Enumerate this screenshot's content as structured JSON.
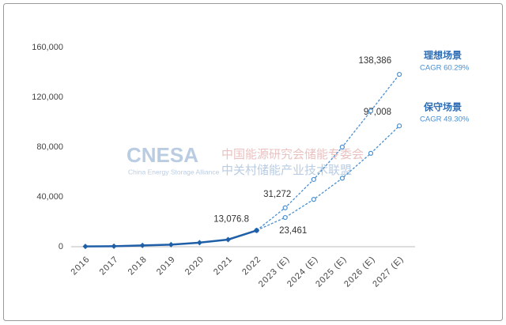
{
  "chart_data": {
    "type": "line",
    "categories": [
      "2016",
      "2017",
      "2018",
      "2019",
      "2020",
      "2021",
      "2022",
      "2023 (E)",
      "2024 (E)",
      "2025 (E)",
      "2026 (E)",
      "2027 (E)"
    ],
    "series": [
      {
        "color": "#1f5fa8",
        "dashed": false,
        "marker": "diamond",
        "values": [
          240,
          390,
          1000,
          1700,
          3270,
          5730,
          13076.8,
          null,
          null,
          null,
          null,
          null
        ],
        "value_labels": [
          null,
          null,
          null,
          null,
          null,
          null,
          "13,076.8",
          null,
          null,
          null,
          null,
          null
        ]
      },
      {
        "name": "理想场景",
        "cagr": "CAGR 60.29%",
        "color": "#4a8fd0",
        "dashed": true,
        "marker": "circle",
        "values": [
          null,
          null,
          null,
          null,
          null,
          null,
          13076.8,
          31272,
          54000,
          80000,
          109000,
          138386
        ],
        "value_labels": [
          null,
          null,
          null,
          null,
          null,
          null,
          null,
          "31,272",
          null,
          null,
          null,
          "138,386"
        ]
      },
      {
        "name": "保守场景",
        "cagr": "CAGR 49.30%",
        "color": "#4a8fd0",
        "dashed": true,
        "marker": "circle",
        "values": [
          null,
          null,
          null,
          null,
          null,
          null,
          13076.8,
          23461,
          38000,
          55000,
          75000,
          97008
        ],
        "value_labels": [
          null,
          null,
          null,
          null,
          null,
          null,
          null,
          "23,461",
          null,
          null,
          null,
          "97,008"
        ]
      }
    ],
    "ylim": [
      0,
      160000
    ],
    "yticks": [
      0,
      {
        "value": 40000,
        "label": "40,000"
      },
      {
        "value": 80000,
        "label": "80,000"
      },
      {
        "value": 120000,
        "label": "120,000"
      },
      {
        "value": 160000,
        "label": "160,000"
      }
    ],
    "grid": false,
    "watermark": {
      "logo": "CNESA",
      "org_cn_1": "中国能源研究会储能专委会",
      "org_cn_2": "中关村储能产业技术联盟",
      "org_en": "China Energy Storage Alliance"
    }
  }
}
